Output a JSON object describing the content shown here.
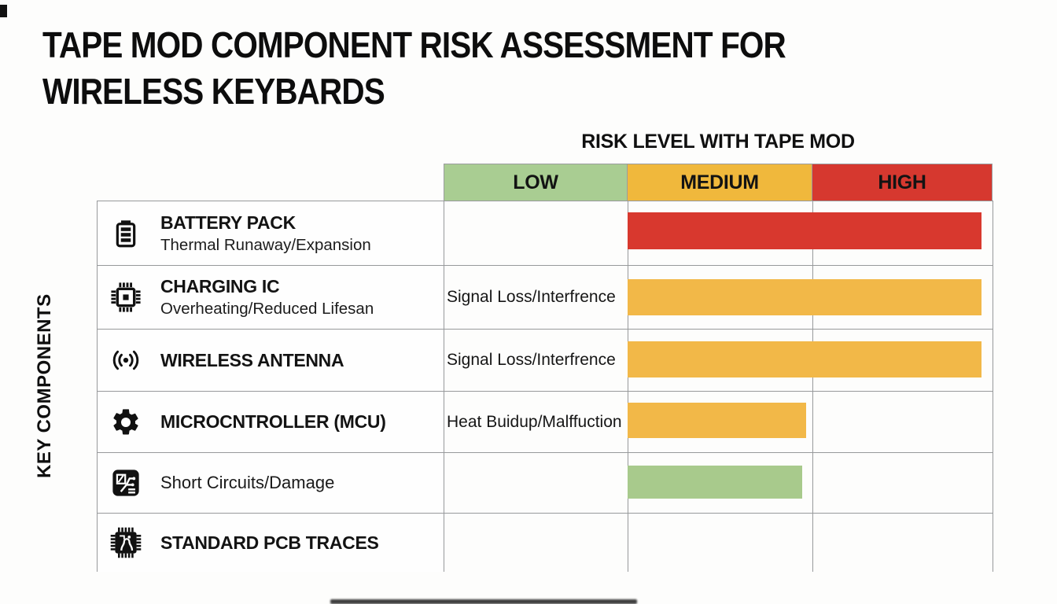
{
  "page": {
    "title_line1": "TAPE MOD COMPONENT RISK ASSESSMENT FOR",
    "title_line2": "WIRELESS KEYBARDS",
    "risk_axis_title": "RISK LEVEL WITH TAPE MOD",
    "y_axis_title": "KEY COMPONENTS"
  },
  "columns": [
    {
      "label": "LOW",
      "color": "#a9cd92"
    },
    {
      "label": "MEDIUM",
      "color": "#f0b83c"
    },
    {
      "label": "HIGH",
      "color": "#d6382f"
    }
  ],
  "rows": [
    {
      "icon": "battery-icon",
      "title": "BATTERY PACK",
      "subtitle": "Thermal Runaway/Expansion",
      "low_note": "",
      "bar": {
        "level": "HIGH",
        "color": "#d8382e",
        "left_pct": 33.5,
        "width_pct": 64.5
      }
    },
    {
      "icon": "charging-ic-icon",
      "title": "CHARGING IC",
      "subtitle": "Overheating/Reduced Lifesan",
      "low_note": "Signal Loss/Interfrence",
      "bar": {
        "level": "MEDIUM-HIGH",
        "color": "#f2b848",
        "left_pct": 33.5,
        "width_pct": 64.5
      }
    },
    {
      "icon": "wireless-antenna-icon",
      "title": "WIRELESS ANTENNA",
      "subtitle": "",
      "low_note": "Signal Loss/Interfrence",
      "bar": {
        "level": "MEDIUM-HIGH",
        "color": "#f2b848",
        "left_pct": 33.5,
        "width_pct": 64.5
      }
    },
    {
      "icon": "gear-icon",
      "title": "MICROCNTROLLER (MCU)",
      "subtitle": "",
      "low_note": "Heat Buidup/Malffuction",
      "bar": {
        "level": "MEDIUM",
        "color": "#f2b848",
        "left_pct": 33.5,
        "width_pct": 32.5
      }
    },
    {
      "icon": "pcb-damage-icon",
      "title": "Short Circuits/Damage",
      "subtitle": "",
      "low_note": "",
      "bar": {
        "level": "LOW-MEDIUM",
        "color": "#a8ca8c",
        "left_pct": 33.5,
        "width_pct": 31.8
      }
    },
    {
      "icon": "pcb-traces-icon",
      "title": "STANDARD PCB TRACES",
      "subtitle": "",
      "low_note": "",
      "bar": null
    }
  ],
  "chart_data": {
    "type": "bar",
    "orientation": "horizontal",
    "title": "TAPE MOD COMPONENT RISK ASSESSMENT FOR WIRELESS KEYBARDS",
    "xlabel": "RISK LEVEL WITH TAPE MOD",
    "ylabel": "KEY COMPONENTS",
    "x_categories": [
      "LOW",
      "MEDIUM",
      "HIGH"
    ],
    "legend": false,
    "grid": true,
    "series": [
      {
        "component": "BATTERY PACK",
        "failure_mode": "Thermal Runaway/Expansion",
        "low_cell_note": "",
        "risk_level": "HIGH",
        "bar_extent": [
          "MEDIUM",
          "HIGH"
        ],
        "bar_color": "#d8382e"
      },
      {
        "component": "CHARGING IC",
        "failure_mode": "Overheating/Reduced Lifesan",
        "low_cell_note": "Signal Loss/Interfrence",
        "risk_level": "MEDIUM-HIGH",
        "bar_extent": [
          "MEDIUM",
          "HIGH"
        ],
        "bar_color": "#f2b848"
      },
      {
        "component": "WIRELESS ANTENNA",
        "failure_mode": "",
        "low_cell_note": "Signal Loss/Interfrence",
        "risk_level": "MEDIUM-HIGH",
        "bar_extent": [
          "MEDIUM",
          "HIGH"
        ],
        "bar_color": "#f2b848"
      },
      {
        "component": "MICROCNTROLLER (MCU)",
        "failure_mode": "",
        "low_cell_note": "Heat Buidup/Malffuction",
        "risk_level": "MEDIUM",
        "bar_extent": [
          "MEDIUM",
          "MEDIUM"
        ],
        "bar_color": "#f2b848"
      },
      {
        "component": "Short Circuits/Damage",
        "failure_mode": "",
        "low_cell_note": "",
        "risk_level": "LOW-MEDIUM",
        "bar_extent": [
          "MEDIUM",
          "MEDIUM"
        ],
        "bar_color": "#a8ca8c"
      },
      {
        "component": "STANDARD PCB TRACES",
        "failure_mode": "",
        "low_cell_note": "",
        "risk_level": null,
        "bar_extent": null,
        "bar_color": null
      }
    ]
  }
}
